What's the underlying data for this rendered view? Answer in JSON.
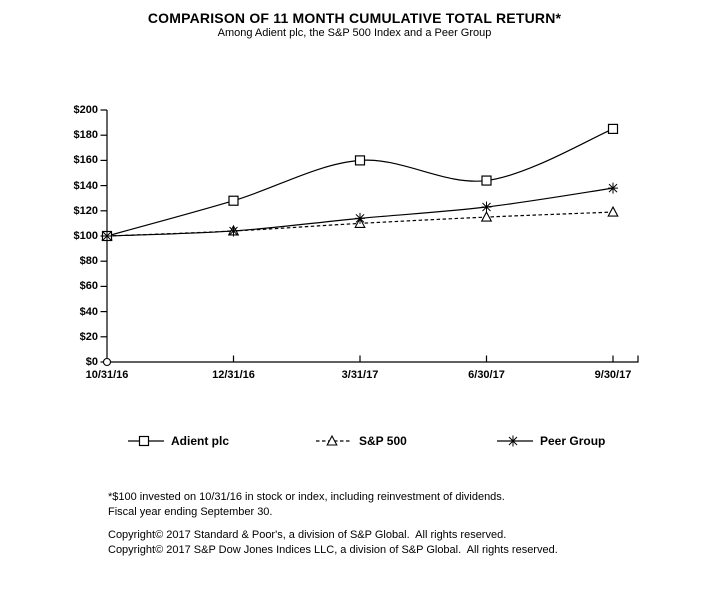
{
  "title": "COMPARISON OF 11 MONTH CUMULATIVE TOTAL RETURN*",
  "subtitle": "Among Adient plc, the S&P 500 Index and a Peer Group",
  "chart_data": {
    "type": "line",
    "x": [
      "10/31/16",
      "12/31/16",
      "3/31/17",
      "6/30/17",
      "9/30/17"
    ],
    "series": [
      {
        "name": "Adient plc",
        "values": [
          100,
          128,
          160,
          144,
          185
        ],
        "line_style": "solid",
        "marker": "square",
        "smooth": true
      },
      {
        "name": "S&P 500",
        "values": [
          100,
          104,
          110,
          115,
          119
        ],
        "line_style": "dashed",
        "marker": "triangle",
        "smooth": true
      },
      {
        "name": "Peer Group",
        "values": [
          100,
          104,
          114,
          123,
          138
        ],
        "line_style": "solid",
        "marker": "star",
        "smooth": true
      }
    ],
    "ylim": [
      0,
      200
    ],
    "ytick_step": 20,
    "ytick_labels": [
      "$0",
      "$20",
      "$40",
      "$60",
      "$80",
      "$100",
      "$120",
      "$140",
      "$160",
      "$180",
      "$200"
    ],
    "grid": false,
    "legend_position": "bottom",
    "line_color": "#000000",
    "marker_fill": "#ffffff",
    "background": "#ffffff"
  },
  "footnotes": [
    "*$100 invested on 10/31/16 in stock or index, including reinvestment of dividends.",
    "Fiscal year ending September 30."
  ],
  "copyright": [
    "Copyright© 2017 Standard & Poor's, a division of S&P Global.  All rights reserved.",
    "Copyright© 2017 S&P Dow Jones Indices LLC, a division of S&P Global.  All rights reserved."
  ]
}
